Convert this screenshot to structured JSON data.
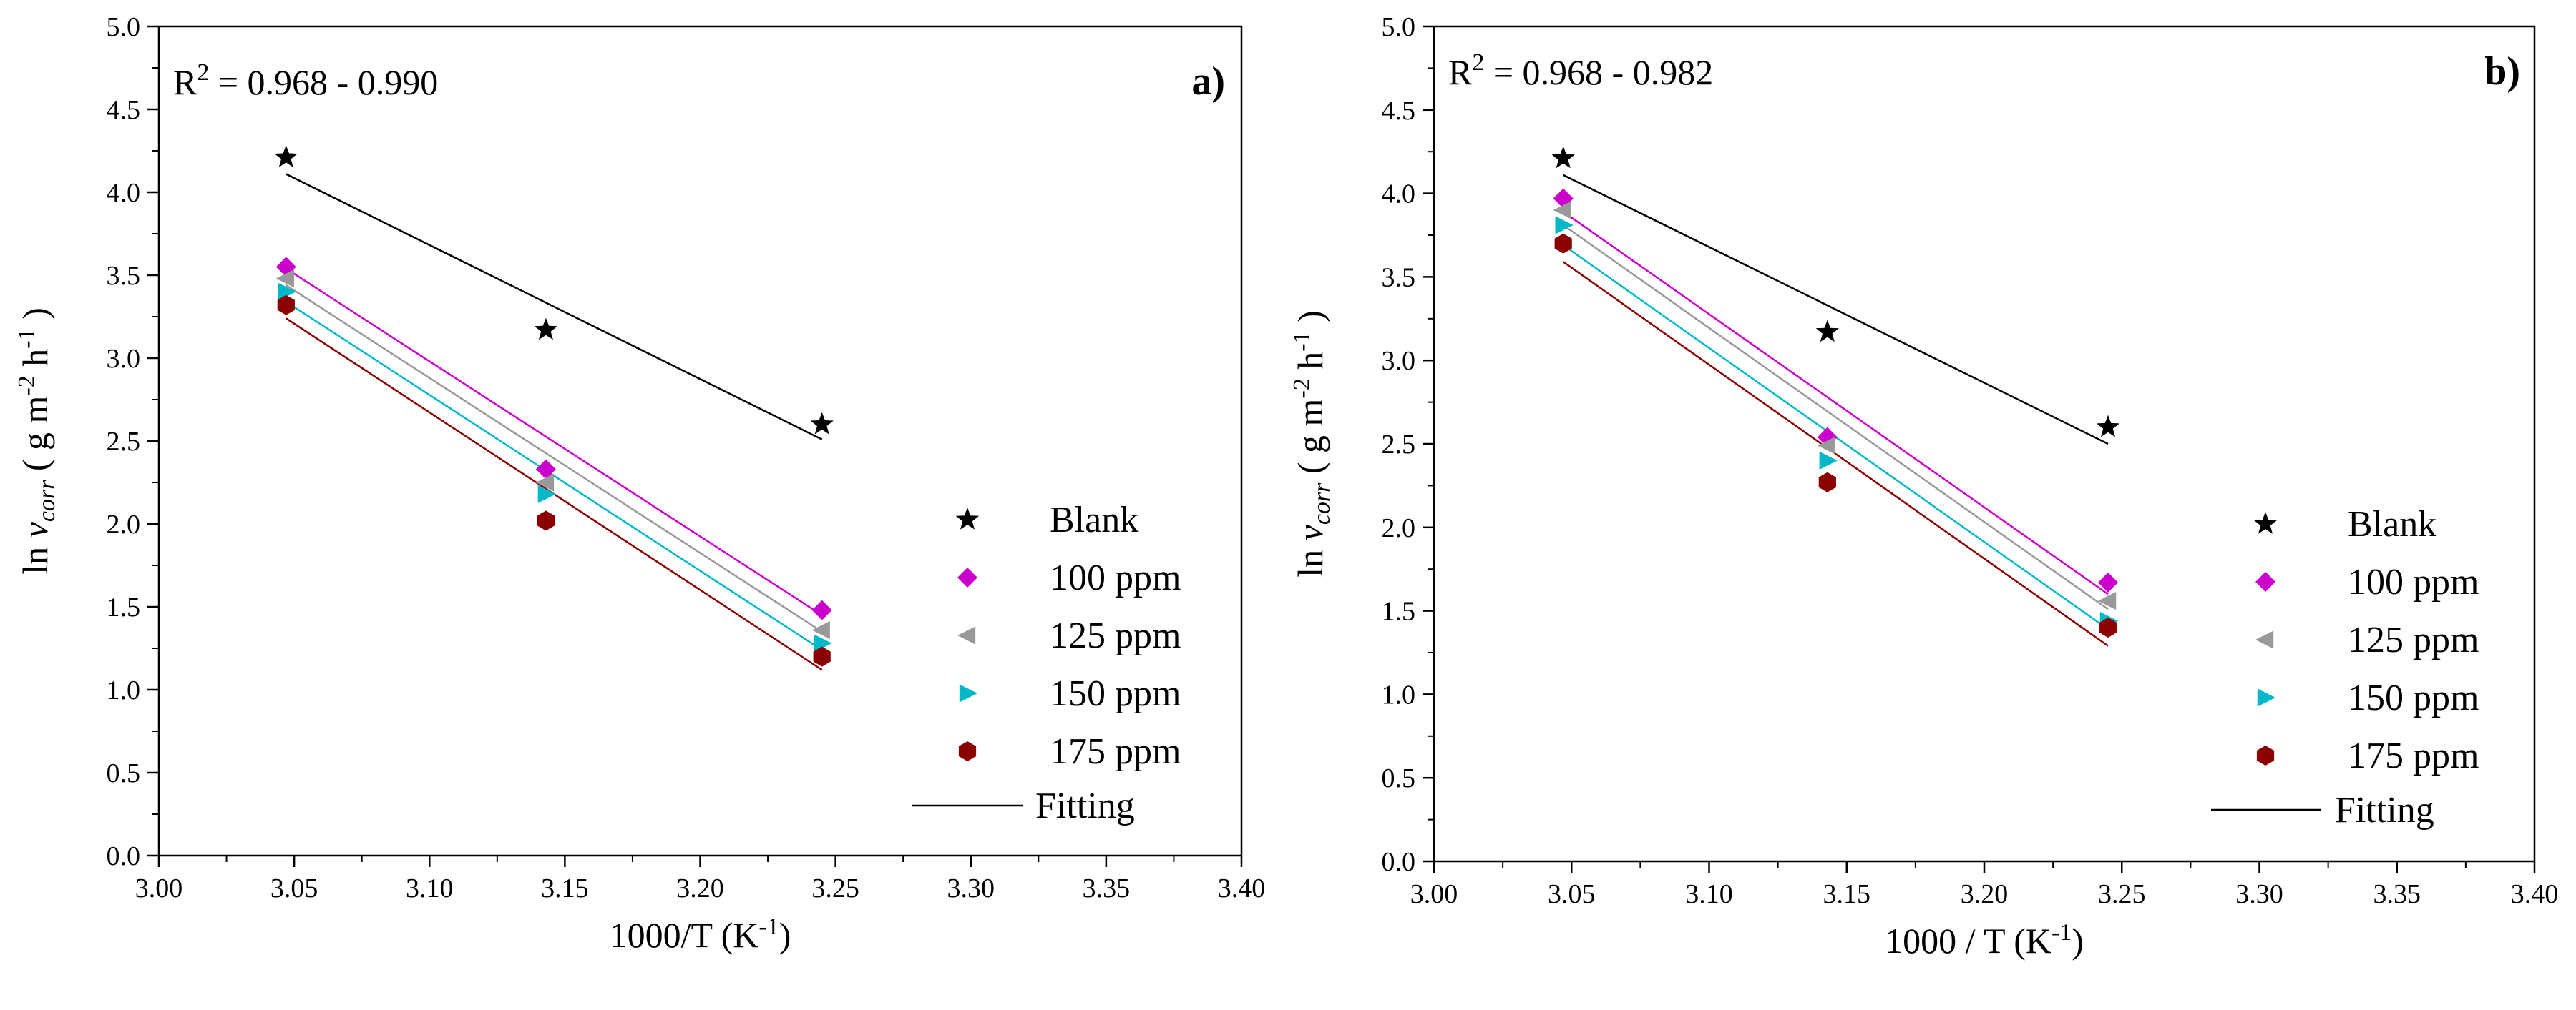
{
  "chart_data": [
    {
      "panel": "a)",
      "type": "scatter",
      "annotation": {
        "r2_label": "R",
        "r2_sup": "2",
        "r2_range": " = 0.968 -  0.990"
      },
      "xlabel": {
        "base": "1000/T (K",
        "sup": "-1",
        "close": ")"
      },
      "ylabel": {
        "pre": "ln ",
        "v": "v",
        "sub": "corr",
        "mid1": " ( g m",
        "sup1": "-2",
        "mid2": " h",
        "sup2": "-1",
        "close": " )"
      },
      "xlim": [
        3.0,
        3.4
      ],
      "ylim": [
        0.0,
        5.0
      ],
      "xticks": [
        "3.00",
        "3.05",
        "3.10",
        "3.15",
        "3.20",
        "3.25",
        "3.30",
        "3.35",
        "3.40"
      ],
      "yticks": [
        "0.0",
        "0.5",
        "1.0",
        "1.5",
        "2.0",
        "2.5",
        "3.0",
        "3.5",
        "4.0",
        "4.5",
        "5.0"
      ],
      "legend_position": "bottom-right",
      "x": [
        3.047,
        3.143,
        3.245
      ],
      "series": [
        {
          "name": "Blank",
          "marker": "star",
          "color": "#000000",
          "values": [
            4.21,
            3.17,
            2.6
          ],
          "fit": [
            4.11,
            2.51
          ]
        },
        {
          "name": "100 ppm",
          "marker": "diamond",
          "color": "#cc00cc",
          "values": [
            3.55,
            2.33,
            1.48
          ],
          "fit": [
            3.54,
            1.45
          ]
        },
        {
          "name": "125 ppm",
          "marker": "triangle-left",
          "color": "#999999",
          "values": [
            3.48,
            2.25,
            1.36
          ],
          "fit": [
            3.44,
            1.35
          ]
        },
        {
          "name": "150 ppm",
          "marker": "triangle-right",
          "color": "#00b8c8",
          "values": [
            3.4,
            2.18,
            1.28
          ],
          "fit": [
            3.34,
            1.24
          ]
        },
        {
          "name": "175 ppm",
          "marker": "hexagon",
          "color": "#8b0000",
          "values": [
            3.32,
            2.02,
            1.2
          ],
          "fit": [
            3.24,
            1.12
          ]
        }
      ],
      "fit_legend": "Fitting"
    },
    {
      "panel": "b)",
      "type": "scatter",
      "annotation": {
        "r2_label": "R",
        "r2_sup": "2",
        "r2_range": " = 0.968 -  0.982"
      },
      "xlabel": {
        "base": "1000 / T (K",
        "sup": "-1",
        "close": ")"
      },
      "ylabel": {
        "pre": "ln ",
        "v": "v",
        "sub": "corr",
        "mid1": " ( g m",
        "sup1": "-2",
        "mid2": " h",
        "sup2": "-1",
        "close": " )"
      },
      "xlim": [
        3.0,
        3.4
      ],
      "ylim": [
        0.0,
        5.0
      ],
      "xticks": [
        "3.00",
        "3.05",
        "3.10",
        "3.15",
        "3.20",
        "3.25",
        "3.30",
        "3.35",
        "3.40"
      ],
      "yticks": [
        "0.0",
        "0.5",
        "1.0",
        "1.5",
        "2.0",
        "2.5",
        "3.0",
        "3.5",
        "4.0",
        "4.5",
        "5.0"
      ],
      "legend_position": "bottom-right",
      "x": [
        3.047,
        3.143,
        3.245
      ],
      "series": [
        {
          "name": "Blank",
          "marker": "star",
          "color": "#000000",
          "values": [
            4.21,
            3.17,
            2.6
          ],
          "fit": [
            4.11,
            2.5
          ]
        },
        {
          "name": "100 ppm",
          "marker": "diamond",
          "color": "#cc00cc",
          "values": [
            3.97,
            2.54,
            1.67
          ],
          "fit": [
            3.89,
            1.6
          ]
        },
        {
          "name": "125 ppm",
          "marker": "triangle-left",
          "color": "#999999",
          "values": [
            3.9,
            2.49,
            1.56
          ],
          "fit": [
            3.81,
            1.51
          ]
        },
        {
          "name": "150 ppm",
          "marker": "triangle-right",
          "color": "#00b8c8",
          "values": [
            3.81,
            2.4,
            1.44
          ],
          "fit": [
            3.69,
            1.39
          ]
        },
        {
          "name": "175 ppm",
          "marker": "hexagon",
          "color": "#8b0000",
          "values": [
            3.7,
            2.27,
            1.4
          ],
          "fit": [
            3.59,
            1.29
          ]
        }
      ],
      "fit_legend": "Fitting"
    }
  ]
}
